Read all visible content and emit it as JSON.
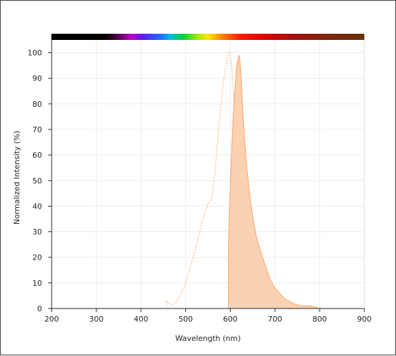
{
  "chart_data": {
    "type": "area",
    "title": "",
    "xlabel": "Wavelength (nm)",
    "ylabel": "Normalized Intensity (%)",
    "xlim": [
      200,
      900
    ],
    "ylim": [
      0,
      105
    ],
    "x_ticks": [
      200,
      300,
      400,
      500,
      600,
      700,
      800,
      900
    ],
    "y_ticks": [
      0,
      10,
      20,
      30,
      40,
      50,
      60,
      70,
      80,
      90,
      100
    ],
    "grid": true,
    "legend": "none",
    "spectrum_bar": true,
    "series": [
      {
        "role": "excitation",
        "style": "dotted-line",
        "color": "#f7b98a",
        "points": [
          [
            457,
            0
          ],
          [
            457,
            3
          ],
          [
            462,
            2
          ],
          [
            470,
            1.5
          ],
          [
            480,
            3
          ],
          [
            490,
            6
          ],
          [
            500,
            10
          ],
          [
            510,
            16
          ],
          [
            520,
            22
          ],
          [
            530,
            29
          ],
          [
            540,
            36
          ],
          [
            550,
            41
          ],
          [
            555,
            42
          ],
          [
            560,
            45
          ],
          [
            565,
            52
          ],
          [
            570,
            62
          ],
          [
            575,
            73
          ],
          [
            580,
            82
          ],
          [
            585,
            89
          ],
          [
            590,
            95
          ],
          [
            594,
            99
          ],
          [
            598,
            100
          ],
          [
            602,
            97
          ],
          [
            606,
            88
          ],
          [
            610,
            72
          ],
          [
            614,
            52
          ],
          [
            618,
            30
          ],
          [
            622,
            15
          ],
          [
            626,
            6
          ],
          [
            630,
            2
          ],
          [
            634,
            0
          ]
        ]
      },
      {
        "role": "emission",
        "style": "filled-area",
        "color": "#f6a26a",
        "fill": "#fbd2b1",
        "points": [
          [
            596,
            0
          ],
          [
            596,
            26
          ],
          [
            600,
            48
          ],
          [
            604,
            66
          ],
          [
            608,
            80
          ],
          [
            612,
            90
          ],
          [
            615,
            96
          ],
          [
            618,
            98
          ],
          [
            620,
            99
          ],
          [
            622,
            96
          ],
          [
            625,
            88
          ],
          [
            628,
            77
          ],
          [
            632,
            66
          ],
          [
            636,
            57
          ],
          [
            640,
            50
          ],
          [
            645,
            42
          ],
          [
            650,
            36
          ],
          [
            655,
            31
          ],
          [
            660,
            27
          ],
          [
            670,
            21
          ],
          [
            680,
            16
          ],
          [
            690,
            11
          ],
          [
            700,
            8
          ],
          [
            710,
            6
          ],
          [
            720,
            4
          ],
          [
            730,
            3
          ],
          [
            740,
            2
          ],
          [
            750,
            1.5
          ],
          [
            760,
            1
          ],
          [
            780,
            1
          ],
          [
            790,
            0.5
          ],
          [
            800,
            0
          ]
        ]
      }
    ]
  }
}
